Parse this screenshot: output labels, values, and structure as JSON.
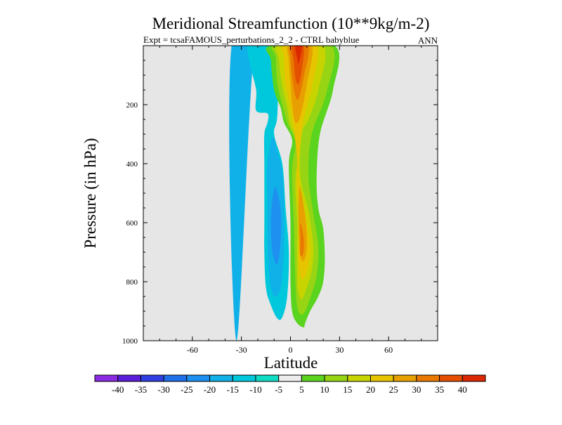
{
  "chart_data": {
    "type": "heatmap",
    "title": "Meridional Streamfunction (10**9kg/m-2)",
    "subtitle_left": "Expt = tcsaFAMOUS_perturbations_2_2 - CTRL babyblue",
    "subtitle_right": "ANN",
    "xlabel": "Latitude",
    "ylabel": "Pressure (in hPa)",
    "xlim": [
      -90,
      90
    ],
    "ylim": [
      1000,
      0
    ],
    "y_reversed": true,
    "x_ticks": [
      "-60",
      "-30",
      "0",
      "30",
      "60"
    ],
    "y_ticks": [
      "200",
      "400",
      "600",
      "800",
      "1000"
    ],
    "background_color": "#e6e6e6",
    "colorbar": {
      "labels": [
        "-40",
        "-35",
        "-30",
        "-25",
        "-20",
        "-15",
        "-10",
        "-5",
        "5",
        "10",
        "15",
        "20",
        "25",
        "30",
        "35",
        "40"
      ],
      "colors": [
        "#8a2be2",
        "#5a1ed8",
        "#2f3fe0",
        "#1f6fe8",
        "#1e90f0",
        "#10b0e8",
        "#00c8dc",
        "#10dcc4",
        "#ececec",
        "#5ad41e",
        "#96d414",
        "#c8d400",
        "#e6c400",
        "#e8a000",
        "#e87800",
        "#e45000",
        "#dc2800"
      ]
    },
    "contours": [
      {
        "value": -15,
        "color": "#10b0e8",
        "points": [
          [
            -33,
            1000
          ],
          [
            -36,
            0
          ],
          [
            -10,
            0
          ],
          [
            -22,
            0
          ]
        ]
      },
      {
        "value": -10,
        "color": "#00c8dc",
        "points": [
          [
            -26,
            0
          ],
          [
            -18,
            0
          ],
          [
            -8,
            0
          ],
          [
            -8,
            230
          ],
          [
            -10,
            300
          ],
          [
            -5,
            400
          ],
          [
            -3,
            550
          ],
          [
            -1,
            700
          ],
          [
            -2,
            850
          ],
          [
            -5,
            920
          ],
          [
            -8,
            925
          ],
          [
            -12,
            880
          ],
          [
            -15,
            820
          ],
          [
            -16,
            700
          ],
          [
            -16,
            600
          ],
          [
            -16,
            500
          ],
          [
            -16,
            400
          ],
          [
            -16,
            300
          ],
          [
            -14,
            260
          ],
          [
            -14,
            230
          ],
          [
            -21,
            220
          ],
          [
            -21,
            150
          ],
          [
            -25,
            60
          ]
        ]
      },
      {
        "value": -15,
        "color": "#10b0e8",
        "points": [
          [
            -11,
            310
          ],
          [
            -8,
            360
          ],
          [
            -5,
            430
          ],
          [
            -4,
            550
          ],
          [
            -4,
            700
          ],
          [
            -6,
            820
          ],
          [
            -10,
            850
          ],
          [
            -13,
            780
          ],
          [
            -14,
            650
          ],
          [
            -14,
            520
          ],
          [
            -14,
            400
          ]
        ]
      },
      {
        "value": -20,
        "color": "#1e90f0",
        "points": [
          [
            -9,
            480
          ],
          [
            -6,
            560
          ],
          [
            -6,
            660
          ],
          [
            -8,
            740
          ],
          [
            -11,
            700
          ],
          [
            -12,
            600
          ],
          [
            -11,
            520
          ]
        ]
      },
      {
        "value": 5,
        "color": "#5ad41e",
        "points": [
          [
            -12,
            0
          ],
          [
            27,
            0
          ],
          [
            26,
            150
          ],
          [
            18,
            300
          ],
          [
            16,
            450
          ],
          [
            17,
            550
          ],
          [
            20,
            620
          ],
          [
            21,
            720
          ],
          [
            20,
            800
          ],
          [
            17,
            850
          ],
          [
            12,
            900
          ],
          [
            9,
            940
          ],
          [
            8,
            955
          ],
          [
            4,
            940
          ],
          [
            1,
            900
          ],
          [
            0,
            800
          ],
          [
            0,
            600
          ],
          [
            -1,
            400
          ],
          [
            1,
            320
          ],
          [
            -4,
            260
          ],
          [
            -6,
            210
          ],
          [
            -10,
            150
          ],
          [
            -12,
            50
          ]
        ]
      },
      {
        "value": 10,
        "color": "#96d414",
        "points": [
          [
            -9,
            0
          ],
          [
            25,
            0
          ],
          [
            22,
            160
          ],
          [
            13,
            300
          ],
          [
            11,
            440
          ],
          [
            14,
            570
          ],
          [
            17,
            680
          ],
          [
            16,
            780
          ],
          [
            13,
            840
          ],
          [
            9,
            900
          ],
          [
            6,
            910
          ],
          [
            4,
            880
          ],
          [
            3,
            800
          ],
          [
            2,
            600
          ],
          [
            1,
            420
          ],
          [
            3,
            330
          ],
          [
            -2,
            260
          ],
          [
            -5,
            200
          ],
          [
            -8,
            130
          ],
          [
            -9,
            40
          ]
        ]
      },
      {
        "value": 15,
        "color": "#c8d400",
        "points": [
          [
            -7,
            0
          ],
          [
            20,
            0
          ],
          [
            17,
            150
          ],
          [
            11,
            250
          ],
          [
            7,
            300
          ],
          [
            6,
            440
          ],
          [
            11,
            560
          ],
          [
            14,
            680
          ],
          [
            13,
            760
          ],
          [
            10,
            820
          ],
          [
            7,
            860
          ],
          [
            5,
            840
          ],
          [
            4,
            780
          ],
          [
            4,
            600
          ],
          [
            3,
            460
          ],
          [
            5,
            340
          ],
          [
            0,
            270
          ],
          [
            -2,
            210
          ],
          [
            -5,
            140
          ],
          [
            -7,
            50
          ]
        ]
      },
      {
        "value": 20,
        "color": "#e6c400",
        "points": [
          [
            -4,
            0
          ],
          [
            16,
            0
          ],
          [
            13,
            140
          ],
          [
            8,
            250
          ],
          [
            6,
            330
          ],
          [
            5,
            440
          ],
          [
            9,
            570
          ],
          [
            12,
            680
          ],
          [
            11,
            740
          ],
          [
            9,
            780
          ],
          [
            7,
            790
          ],
          [
            5,
            740
          ],
          [
            5,
            600
          ],
          [
            4,
            460
          ],
          [
            4,
            380
          ],
          [
            2,
            280
          ],
          [
            0,
            210
          ],
          [
            -3,
            130
          ],
          [
            -4,
            40
          ]
        ]
      },
      {
        "value": 25,
        "color": "#e8a000",
        "points": [
          [
            -1,
            0
          ],
          [
            13,
            0
          ],
          [
            10,
            130
          ],
          [
            6,
            240
          ],
          [
            3,
            260
          ],
          [
            1,
            200
          ],
          [
            0,
            130
          ],
          [
            -1,
            50
          ]
        ]
      },
      {
        "value": 25,
        "color": "#e8a000",
        "points": [
          [
            6,
            480
          ],
          [
            9,
            580
          ],
          [
            10,
            680
          ],
          [
            8,
            730
          ],
          [
            6,
            710
          ],
          [
            5,
            620
          ],
          [
            5,
            530
          ]
        ]
      },
      {
        "value": 30,
        "color": "#e87800",
        "points": [
          [
            0,
            0
          ],
          [
            11,
            0
          ],
          [
            8,
            110
          ],
          [
            5,
            180
          ],
          [
            3,
            170
          ],
          [
            1,
            110
          ],
          [
            0,
            40
          ]
        ]
      },
      {
        "value": 30,
        "color": "#e87800",
        "points": [
          [
            6,
            600
          ],
          [
            8,
            650
          ],
          [
            8,
            700
          ],
          [
            6,
            710
          ],
          [
            6,
            650
          ]
        ]
      },
      {
        "value": 35,
        "color": "#e45000",
        "points": [
          [
            1,
            0
          ],
          [
            8,
            0
          ],
          [
            7,
            80
          ],
          [
            5,
            130
          ],
          [
            3,
            110
          ],
          [
            2,
            50
          ]
        ]
      },
      {
        "value": 40,
        "color": "#dc2800",
        "points": [
          [
            3,
            0
          ],
          [
            7,
            0
          ],
          [
            5,
            60
          ],
          [
            4,
            40
          ]
        ]
      }
    ]
  }
}
